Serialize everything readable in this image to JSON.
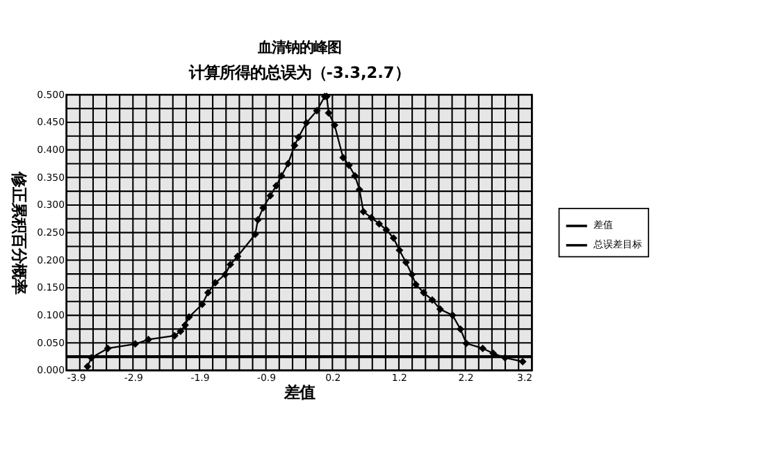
{
  "chart_data": {
    "type": "line",
    "title": "血清钠的峰图",
    "subtitle": "计算所得的总误为（-3.3,2.7）",
    "xlabel": "差值",
    "ylabel": "修正累积百分概率",
    "x": [
      -3.58,
      -3.52,
      -3.27,
      -2.85,
      -2.65,
      -2.25,
      -2.16,
      -2.09,
      -2.03,
      -1.83,
      -1.74,
      -1.63,
      -1.48,
      -1.4,
      -1.29,
      -1.02,
      -0.98,
      -0.9,
      -0.79,
      -0.7,
      -0.62,
      -0.52,
      -0.42,
      -0.36,
      -0.24,
      -0.08,
      0.04,
      0.07,
      0.1,
      0.19,
      0.32,
      0.41,
      0.5,
      0.57,
      0.63,
      0.75,
      0.87,
      0.98,
      1.09,
      1.18,
      1.28,
      1.37,
      1.43,
      1.55,
      1.68,
      1.8,
      1.99,
      2.11,
      2.2,
      2.45,
      2.61,
      2.79,
      3.06
    ],
    "series": [
      {
        "name": "差值",
        "color": "#000000",
        "marker": "diamond",
        "values": [
          0.007,
          0.023,
          0.04,
          0.048,
          0.056,
          0.063,
          0.071,
          0.082,
          0.097,
          0.12,
          0.141,
          0.159,
          0.174,
          0.192,
          0.207,
          0.247,
          0.273,
          0.295,
          0.317,
          0.335,
          0.353,
          0.375,
          0.408,
          0.423,
          0.449,
          0.471,
          0.497,
          0.497,
          0.467,
          0.445,
          0.386,
          0.372,
          0.353,
          0.328,
          0.288,
          0.277,
          0.266,
          0.255,
          0.24,
          0.218,
          0.196,
          0.174,
          0.156,
          0.141,
          0.128,
          0.111,
          0.1,
          0.075,
          0.049,
          0.04,
          0.031,
          0.023,
          0.016
        ]
      }
    ],
    "ref_lines": [
      {
        "axis": "y",
        "value": 0.025,
        "label": "总误差目标",
        "color": "#000000",
        "line_style": "solid"
      }
    ],
    "xlim": [
      -3.9,
      3.2
    ],
    "xticks": [
      {
        "value": -3.9,
        "label": "-3.9"
      },
      {
        "value": -3.697,
        "label": null
      },
      {
        "value": -3.494,
        "label": null
      },
      {
        "value": -3.291,
        "label": null
      },
      {
        "value": -3.089,
        "label": null
      },
      {
        "value": -2.886,
        "label": "-2.9"
      },
      {
        "value": -2.683,
        "label": null
      },
      {
        "value": -2.48,
        "label": null
      },
      {
        "value": -2.277,
        "label": null
      },
      {
        "value": -2.074,
        "label": null
      },
      {
        "value": -1.871,
        "label": "-1.9"
      },
      {
        "value": -1.669,
        "label": null
      },
      {
        "value": -1.466,
        "label": null
      },
      {
        "value": -1.263,
        "label": null
      },
      {
        "value": -1.06,
        "label": null
      },
      {
        "value": -0.857,
        "label": "-0.9"
      },
      {
        "value": -0.654,
        "label": null
      },
      {
        "value": -0.451,
        "label": null
      },
      {
        "value": -0.249,
        "label": null
      },
      {
        "value": -0.046,
        "label": null
      },
      {
        "value": 0.157,
        "label": "0.2"
      },
      {
        "value": 0.36,
        "label": null
      },
      {
        "value": 0.563,
        "label": null
      },
      {
        "value": 0.766,
        "label": null
      },
      {
        "value": 0.969,
        "label": null
      },
      {
        "value": 1.171,
        "label": "1.2"
      },
      {
        "value": 1.374,
        "label": null
      },
      {
        "value": 1.577,
        "label": null
      },
      {
        "value": 1.78,
        "label": null
      },
      {
        "value": 1.983,
        "label": null
      },
      {
        "value": 2.186,
        "label": "2.2"
      },
      {
        "value": 2.389,
        "label": null
      },
      {
        "value": 2.591,
        "label": null
      },
      {
        "value": 2.794,
        "label": null
      },
      {
        "value": 2.997,
        "label": null
      },
      {
        "value": 3.2,
        "label": "3.2"
      }
    ],
    "ylim": [
      0,
      0.5
    ],
    "yticks": [
      {
        "value": 0,
        "label": "0.000"
      },
      {
        "value": 0.025,
        "label": null
      },
      {
        "value": 0.05,
        "label": "0.050"
      },
      {
        "value": 0.075,
        "label": null
      },
      {
        "value": 0.1,
        "label": "0.100"
      },
      {
        "value": 0.125,
        "label": null
      },
      {
        "value": 0.15,
        "label": "0.150"
      },
      {
        "value": 0.175,
        "label": null
      },
      {
        "value": 0.2,
        "label": "0.200"
      },
      {
        "value": 0.225,
        "label": null
      },
      {
        "value": 0.25,
        "label": "0.250"
      },
      {
        "value": 0.275,
        "label": null
      },
      {
        "value": 0.3,
        "label": "0.300"
      },
      {
        "value": 0.325,
        "label": null
      },
      {
        "value": 0.35,
        "label": "0.350"
      },
      {
        "value": 0.375,
        "label": null
      },
      {
        "value": 0.4,
        "label": "0.400"
      },
      {
        "value": 0.425,
        "label": null
      },
      {
        "value": 0.45,
        "label": "0.450"
      },
      {
        "value": 0.475,
        "label": null
      },
      {
        "value": 0.5,
        "label": "0.500"
      }
    ],
    "grid": true,
    "legend": "right",
    "line_style": "solid"
  }
}
